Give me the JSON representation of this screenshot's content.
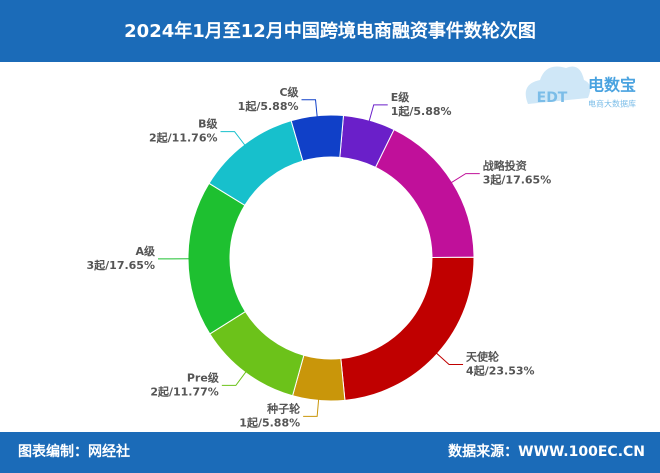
{
  "chart_data": {
    "type": "donut",
    "title": "2024年1月至12月中国跨境电商融资事件数轮次图",
    "categories": [
      "E级",
      "战略投资",
      "天使轮",
      "种子轮",
      "Pre级",
      "A级",
      "B级",
      "C级"
    ],
    "values": [
      1,
      3,
      4,
      1,
      2,
      3,
      2,
      1
    ],
    "value_labels": [
      "1起/5.88%",
      "3起/17.65%",
      "4起/23.53%",
      "1起/5.88%",
      "2起/11.77%",
      "3起/17.65%",
      "2起/11.76%",
      "1起/5.88%"
    ],
    "colors": [
      "#6a1fc9",
      "#c0109a",
      "#c00000",
      "#c9960a",
      "#6cc21a",
      "#1ec030",
      "#17c0cc",
      "#1040c8"
    ],
    "credit": "图表编制：网经社",
    "source": "数据来源：WWW.100EC.CN",
    "logo": {
      "name": "电数宝",
      "mark": "EDT",
      "tagline": "电商大数据库"
    }
  }
}
